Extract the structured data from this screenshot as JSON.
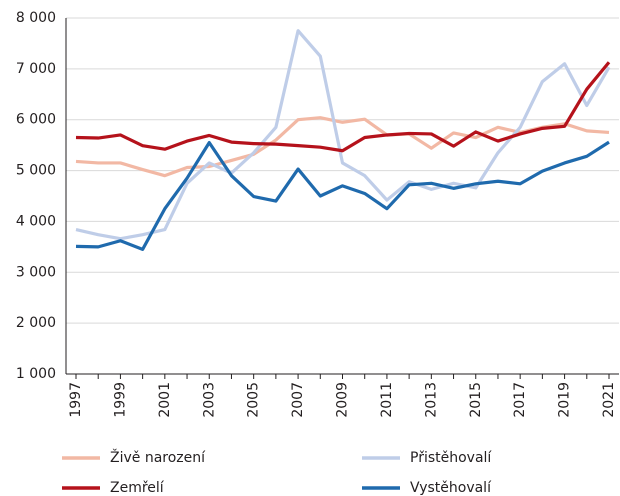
{
  "chart_data": {
    "type": "line",
    "categories": [
      "1997",
      null,
      "1999",
      null,
      "2001",
      null,
      "2003",
      null,
      "2005",
      null,
      "2007",
      null,
      "2009",
      null,
      "2011",
      null,
      "2013",
      null,
      "2015",
      null,
      "2017",
      null,
      "2019",
      null,
      "2021"
    ],
    "series": [
      {
        "name": "Živě narození",
        "color": "#f2b8a4",
        "values": [
          5180,
          5150,
          5150,
          5020,
          4900,
          5060,
          5080,
          5200,
          5320,
          5600,
          6000,
          6040,
          5950,
          6010,
          5700,
          5720,
          5440,
          5740,
          5650,
          5850,
          5750,
          5850,
          5920,
          5780,
          5750
        ]
      },
      {
        "name": "Přistěhovalí",
        "color": "#bfcde8",
        "values": [
          3840,
          3740,
          3660,
          3740,
          3840,
          4750,
          5150,
          4950,
          5350,
          5850,
          7750,
          7250,
          5150,
          4900,
          4420,
          4780,
          4630,
          4750,
          4660,
          5350,
          5850,
          6750,
          7100,
          6280,
          7030
        ]
      },
      {
        "name": "Zemřelí",
        "color": "#b5121b",
        "values": [
          5650,
          5640,
          5700,
          5490,
          5420,
          5580,
          5690,
          5560,
          5530,
          5520,
          5490,
          5460,
          5390,
          5650,
          5700,
          5730,
          5720,
          5480,
          5760,
          5580,
          5720,
          5830,
          5870,
          6600,
          7130
        ]
      },
      {
        "name": "Vystěhovalí",
        "color": "#1f6aad",
        "values": [
          3510,
          3500,
          3620,
          3450,
          4250,
          4850,
          5550,
          4900,
          4490,
          4400,
          5030,
          4500,
          4700,
          4550,
          4250,
          4720,
          4750,
          4650,
          4740,
          4790,
          4740,
          4990,
          5150,
          5280,
          5560
        ]
      }
    ],
    "ylim": [
      1000,
      8000
    ],
    "yticks": [
      {
        "value": 1000,
        "label": "1 000"
      },
      {
        "value": 2000,
        "label": "2 000"
      },
      {
        "value": 3000,
        "label": "3 000"
      },
      {
        "value": 4000,
        "label": "4 000"
      },
      {
        "value": 5000,
        "label": "5 000"
      },
      {
        "value": 6000,
        "label": "6 000"
      },
      {
        "value": 7000,
        "label": "7 000"
      },
      {
        "value": 8000,
        "label": "8 000"
      }
    ],
    "grid": true,
    "legend": "bottom"
  }
}
